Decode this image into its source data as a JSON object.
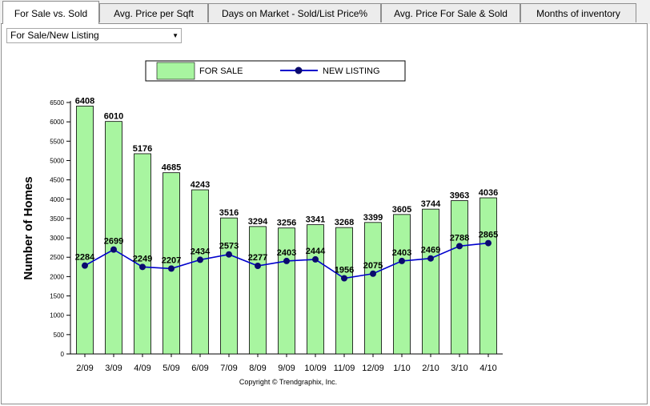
{
  "tabs": [
    {
      "label": "For Sale vs. Sold",
      "active": true
    },
    {
      "label": "Avg. Price per Sqft",
      "active": false
    },
    {
      "label": "Days on Market - Sold/List Price%",
      "active": false
    },
    {
      "label": "Avg. Price For Sale & Sold",
      "active": false
    },
    {
      "label": "Months of inventory",
      "active": false
    }
  ],
  "selector": {
    "value": "For Sale/New Listing",
    "arrow_icon": "dropdown-arrow-icon"
  },
  "colors": {
    "bar_fill": "#a8f5a0",
    "line": "#0000cc",
    "marker": "#0a0a6e"
  },
  "copyright": "Copyright © Trendgraphix, Inc.",
  "chart_data": {
    "type": "bar",
    "ylabel": "Number of Homes",
    "ylim": [
      0,
      6500
    ],
    "yticks": [
      0,
      500,
      1000,
      1500,
      2000,
      2500,
      3000,
      3500,
      4000,
      4500,
      5000,
      5500,
      6000,
      6500
    ],
    "legend_position": "top-center",
    "categories": [
      "2/09",
      "3/09",
      "4/09",
      "5/09",
      "6/09",
      "7/09",
      "8/09",
      "9/09",
      "10/09",
      "11/09",
      "12/09",
      "1/10",
      "2/10",
      "3/10",
      "4/10"
    ],
    "series": [
      {
        "name": "FOR SALE",
        "type": "bar",
        "values": [
          6408,
          6010,
          5176,
          4685,
          4243,
          3516,
          3294,
          3256,
          3341,
          3268,
          3399,
          3605,
          3744,
          3963,
          4036
        ]
      },
      {
        "name": "NEW LISTING",
        "type": "line",
        "values": [
          2284,
          2699,
          2249,
          2207,
          2434,
          2573,
          2277,
          2403,
          2444,
          1956,
          2075,
          2403,
          2469,
          2788,
          2865
        ]
      }
    ]
  }
}
